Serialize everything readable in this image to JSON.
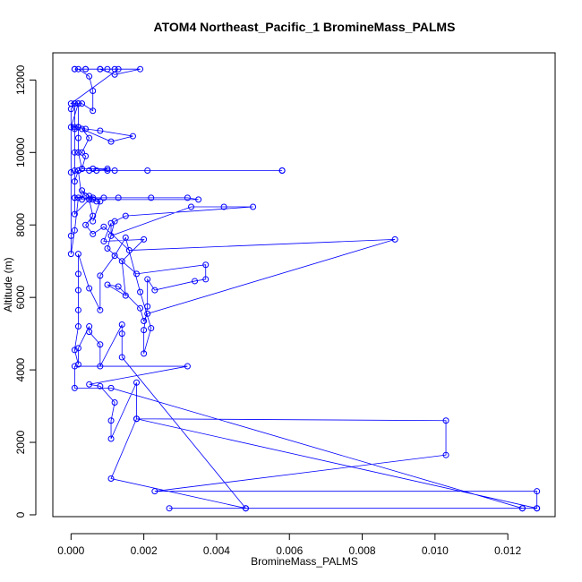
{
  "chart_data": {
    "type": "line",
    "title": "ATOM4 Northeast_Pacific_1 BromineMass_PALMS",
    "xlabel": "BromineMass_PALMS",
    "ylabel": "Altitude (m)",
    "xlim": [
      -0.0005,
      0.0133
    ],
    "ylim": [
      -50,
      12750
    ],
    "x_ticks": [
      0.0,
      0.002,
      0.004,
      0.006,
      0.008,
      0.01,
      0.012
    ],
    "x_tick_labels": [
      "0.000",
      "0.002",
      "0.004",
      "0.006",
      "0.008",
      "0.010",
      "0.012"
    ],
    "y_ticks": [
      0,
      2000,
      4000,
      6000,
      8000,
      10000,
      12000
    ],
    "y_tick_labels": [
      "0",
      "2000",
      "4000",
      "6000",
      "8000",
      "10000",
      "12000"
    ],
    "grid": false,
    "marker": "open-circle",
    "series": [
      {
        "color": "#0000ff",
        "points": [
          [
            0.0048,
            180
          ],
          [
            0.0027,
            180
          ],
          [
            0.0124,
            180
          ],
          [
            0.0128,
            180
          ],
          [
            0.0128,
            650
          ],
          [
            0.0023,
            650
          ],
          [
            0.0103,
            1650
          ],
          [
            0.0103,
            2600
          ],
          [
            0.0018,
            2650
          ],
          [
            0.0128,
            180
          ],
          [
            0.0124,
            180
          ],
          [
            0.0011,
            3500
          ],
          [
            0.0001,
            3500
          ],
          [
            0.0001,
            4100
          ],
          [
            0.0032,
            4100
          ],
          [
            0.0005,
            3600
          ],
          [
            0.0008,
            3550
          ],
          [
            0.0012,
            3100
          ],
          [
            0.0011,
            2600
          ],
          [
            0.0011,
            2100
          ],
          [
            0.0018,
            3650
          ],
          [
            0.0018,
            2650
          ],
          [
            0.0011,
            1000
          ],
          [
            0.0048,
            180
          ],
          [
            0.0014,
            4350
          ],
          [
            0.0014,
            5000
          ],
          [
            0.0014,
            5250
          ],
          [
            0.0008,
            4100
          ],
          [
            0.0008,
            4700
          ],
          [
            0.0005,
            5050
          ],
          [
            0.0005,
            5200
          ],
          [
            0.0002,
            4600
          ],
          [
            0.0002,
            4150
          ],
          [
            0.0001,
            4550
          ],
          [
            0.0002,
            5200
          ],
          [
            0.0002,
            5650
          ],
          [
            0.0002,
            6200
          ],
          [
            0.0002,
            6650
          ],
          [
            0.0002,
            7200
          ],
          [
            0.0005,
            6250
          ],
          [
            0.0008,
            5650
          ],
          [
            0.0008,
            6600
          ],
          [
            0.0012,
            7150
          ],
          [
            0.0015,
            7650
          ],
          [
            0.0019,
            6150
          ],
          [
            0.0022,
            5150
          ],
          [
            0.002,
            4450
          ],
          [
            0.002,
            5100
          ],
          [
            0.0021,
            5750
          ],
          [
            0.0021,
            6500
          ],
          [
            0.0023,
            6200
          ],
          [
            0.0034,
            6450
          ],
          [
            0.0037,
            6500
          ],
          [
            0.0037,
            6900
          ],
          [
            0.0018,
            6650
          ],
          [
            0.001,
            7350
          ],
          [
            0.0012,
            8100
          ],
          [
            0.0015,
            8250
          ],
          [
            0.005,
            8500
          ],
          [
            0.0042,
            8500
          ],
          [
            0.0033,
            8500
          ],
          [
            0.0011,
            7700
          ],
          [
            0.0011,
            8050
          ],
          [
            0.0009,
            7550
          ],
          [
            0.002,
            7600
          ],
          [
            0.0014,
            7000
          ],
          [
            0.0015,
            6050
          ],
          [
            0.001,
            6350
          ],
          [
            0.0013,
            6300
          ],
          [
            0.0019,
            5700
          ],
          [
            0.002,
            5350
          ],
          [
            0.0021,
            5550
          ],
          [
            0.0089,
            7600
          ],
          [
            0.0016,
            7300
          ],
          [
            0.0009,
            7950
          ],
          [
            0.0006,
            7750
          ],
          [
            0.0004,
            8000
          ],
          [
            0.0006,
            8250
          ],
          [
            0.0005,
            8700
          ],
          [
            0.0001,
            8300
          ],
          [
            0.0001,
            8750
          ],
          [
            0.0001,
            9500
          ],
          [
            0.0001,
            10000
          ],
          [
            0.0001,
            10650
          ],
          [
            0.0001,
            11350
          ],
          [
            0.0,
            11200
          ],
          [
            0.0,
            9450
          ],
          [
            0.0,
            7700
          ],
          [
            0.0,
            7200
          ],
          [
            0.0001,
            7850
          ],
          [
            0.0002,
            8750
          ],
          [
            0.0006,
            8750
          ],
          [
            0.0009,
            8750
          ],
          [
            0.0013,
            8750
          ],
          [
            0.0022,
            8750
          ],
          [
            0.0032,
            8750
          ],
          [
            0.0035,
            8700
          ],
          [
            0.0006,
            8700
          ],
          [
            0.0003,
            8700
          ],
          [
            0.0002,
            9500
          ],
          [
            0.0005,
            9500
          ],
          [
            0.001,
            9500
          ],
          [
            0.0021,
            9500
          ],
          [
            0.0058,
            9500
          ],
          [
            0.0058,
            9500
          ],
          [
            0.0012,
            9500
          ],
          [
            0.0006,
            9550
          ],
          [
            0.0003,
            9550
          ],
          [
            0.0002,
            10000
          ],
          [
            0.0002,
            10400
          ],
          [
            0.0002,
            10700
          ],
          [
            0.0002,
            11350
          ],
          [
            0.0003,
            11350
          ],
          [
            0.0006,
            11150
          ],
          [
            0.0006,
            11700
          ],
          [
            0.0005,
            12100
          ],
          [
            0.0002,
            12300
          ],
          [
            0.0001,
            12300
          ],
          [
            0.0004,
            12300
          ],
          [
            0.0008,
            12300
          ],
          [
            0.0012,
            12300
          ],
          [
            0.0019,
            12300
          ],
          [
            0.0012,
            12150
          ],
          [
            0.0008,
            12300
          ],
          [
            0.0001,
            12300
          ],
          [
            0.0004,
            12300
          ],
          [
            0.001,
            12300
          ],
          [
            0.0013,
            12300
          ],
          [
            0.0,
            11350
          ],
          [
            0.0001,
            11350
          ],
          [
            0.0002,
            11350
          ],
          [
            0.0,
            10700
          ],
          [
            0.0001,
            10700
          ],
          [
            0.0002,
            10700
          ],
          [
            0.0004,
            10650
          ],
          [
            0.0008,
            10600
          ],
          [
            0.0017,
            10450
          ],
          [
            0.0011,
            10300
          ],
          [
            0.0003,
            10650
          ],
          [
            0.0005,
            10400
          ],
          [
            0.0003,
            10000
          ],
          [
            0.0004,
            9900
          ],
          [
            0.0003,
            9550
          ],
          [
            0.0006,
            9550
          ],
          [
            0.001,
            9550
          ],
          [
            0.0007,
            9500
          ],
          [
            0.0002,
            9500
          ],
          [
            0.0001,
            9200
          ],
          [
            0.0001,
            8750
          ],
          [
            0.0004,
            8800
          ],
          [
            0.0003,
            8950
          ],
          [
            0.0005,
            8800
          ],
          [
            0.0007,
            8650
          ],
          [
            0.0008,
            8650
          ],
          [
            0.0006,
            8100
          ]
        ]
      }
    ]
  }
}
